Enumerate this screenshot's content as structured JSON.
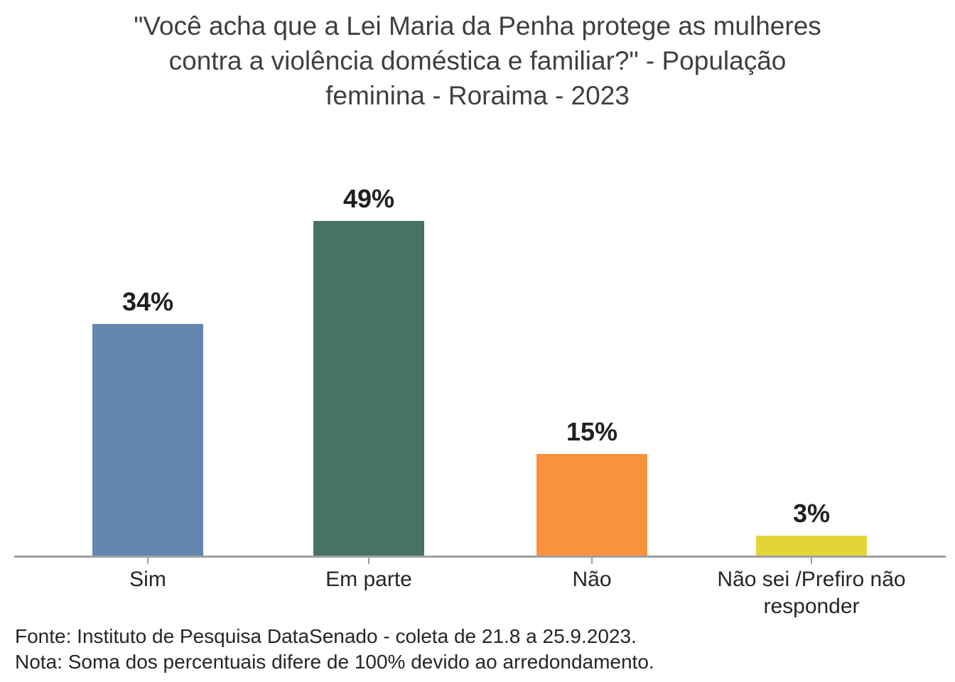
{
  "title": {
    "lines": [
      "\"Você acha que a Lei Maria da Penha protege as mulheres",
      "contra a violência doméstica e familiar?\" - População",
      "feminina - Roraima - 2023"
    ]
  },
  "chart_data": {
    "type": "bar",
    "title": "\"Você acha que a Lei Maria da Penha protege as mulheres contra a violência doméstica e familiar?\" - População feminina - Roraima - 2023",
    "categories": [
      "Sim",
      "Em parte",
      "Não",
      "Não sei /Prefiro não responder"
    ],
    "values": [
      34,
      49,
      15,
      3
    ],
    "value_labels": [
      "34%",
      "49%",
      "15%",
      "3%"
    ],
    "unit": "%",
    "bar_colors": [
      "#6287b0",
      "#467363",
      "#f9923c",
      "#e3d536"
    ],
    "xlabel": "",
    "ylabel": "",
    "ylim": [
      0,
      52
    ],
    "grid": false,
    "legend": false,
    "axis_color": "#a0a0a0",
    "value_label_color": "#1f1f1f",
    "title_color": "#3f3f3f"
  },
  "footer": {
    "source": "Fonte: Instituto de Pesquisa DataSenado - coleta de 21.8 a 25.9.2023.",
    "note": "Nota: Soma dos percentuais difere de 100% devido ao arredondamento."
  }
}
